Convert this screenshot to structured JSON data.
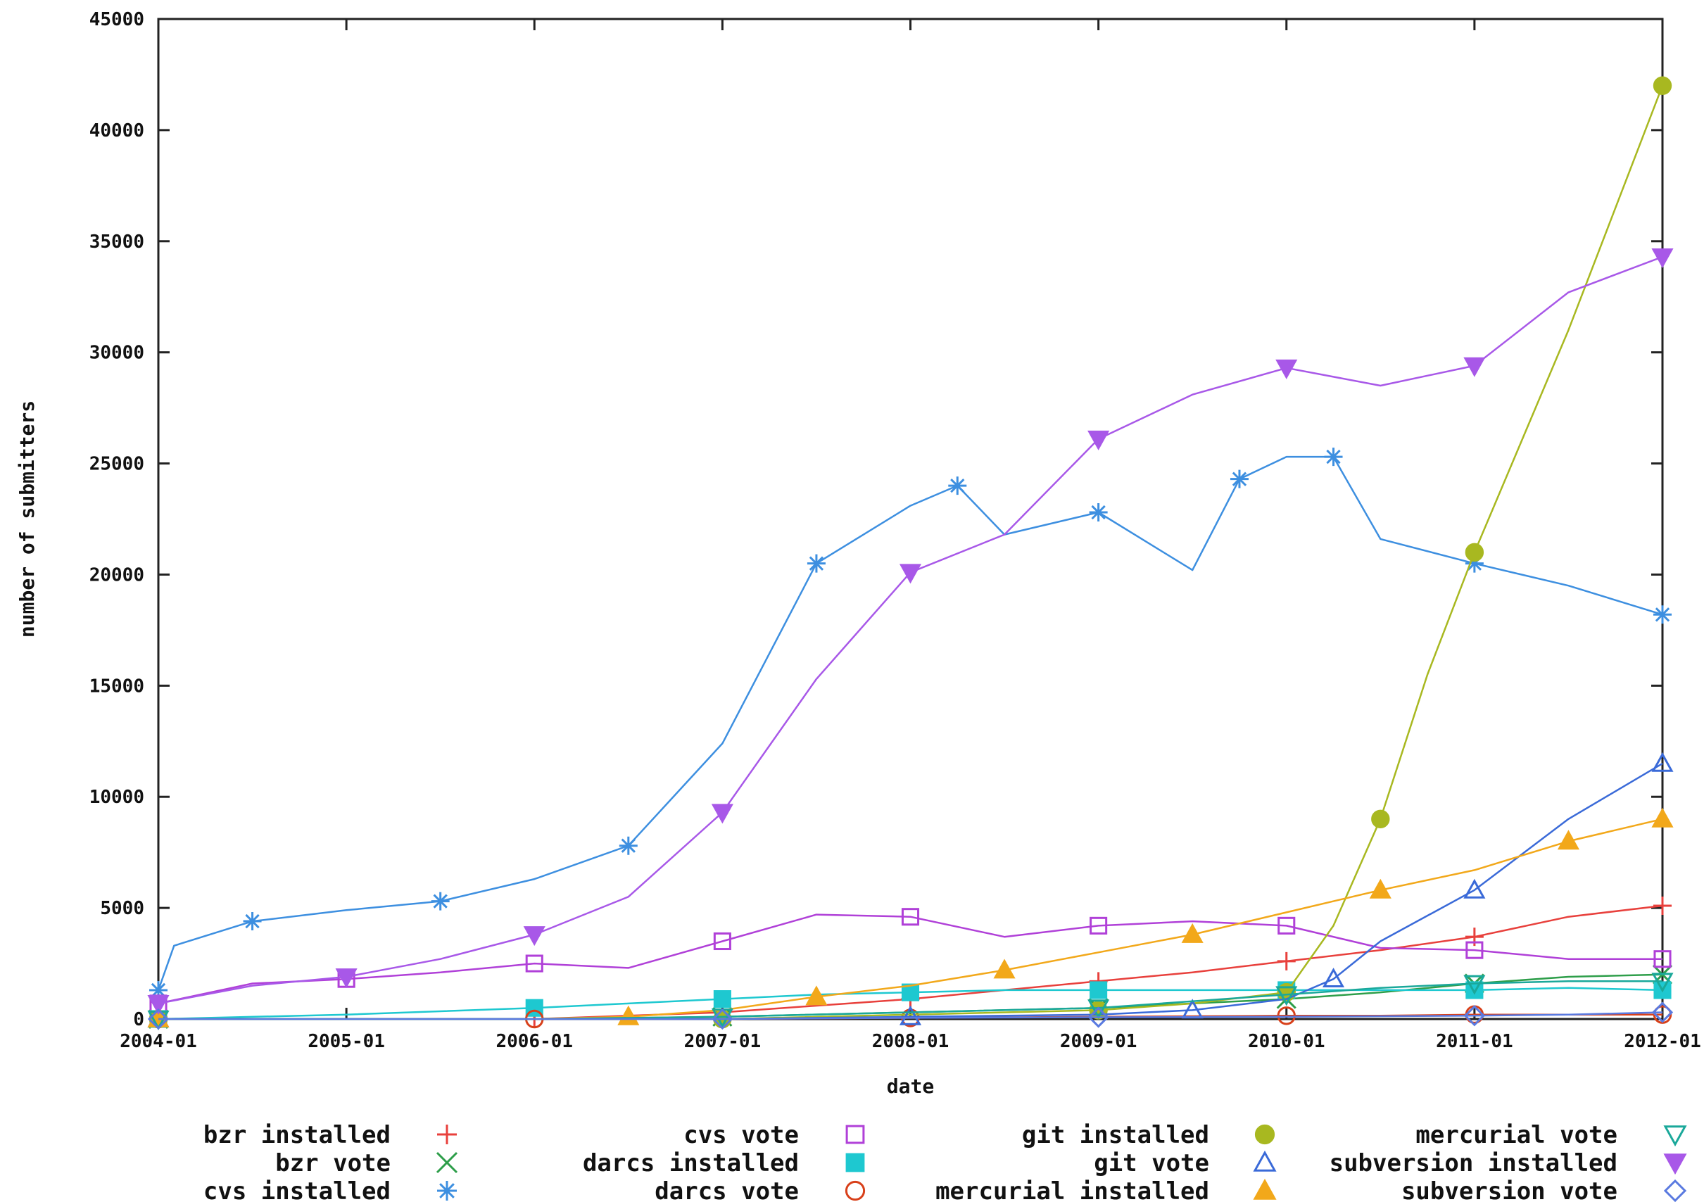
{
  "chart_data": {
    "type": "line",
    "xlabel": "date",
    "ylabel": "number of submitters",
    "x_tick_labels": [
      "2004-01",
      "2005-01",
      "2006-01",
      "2007-01",
      "2008-01",
      "2009-01",
      "2010-01",
      "2011-01",
      "2012-01"
    ],
    "y_tick_labels": [
      "0",
      "5000",
      "10000",
      "15000",
      "20000",
      "25000",
      "30000",
      "35000",
      "40000",
      "45000"
    ],
    "xlim": [
      "2004-01",
      "2012-01"
    ],
    "ylim": [
      0,
      45000
    ],
    "legend_position": "bottom",
    "series": [
      {
        "name": "bzr installed",
        "color": "#e8403c",
        "marker": "plus",
        "x": [
          "2004-01",
          "2005-01",
          "2006-01",
          "2007-01",
          "2008-01",
          "2008-07",
          "2009-01",
          "2009-07",
          "2010-01",
          "2010-07",
          "2011-01",
          "2011-07",
          "2012-01"
        ],
        "y": [
          0,
          0,
          0,
          300,
          900,
          1300,
          1700,
          2100,
          2600,
          3100,
          3700,
          4600,
          5100
        ]
      },
      {
        "name": "bzr vote",
        "color": "#2e9e4a",
        "marker": "x",
        "x": [
          "2004-01",
          "2006-01",
          "2007-01",
          "2008-01",
          "2009-01",
          "2009-07",
          "2010-01",
          "2010-07",
          "2011-01",
          "2011-07",
          "2012-01"
        ],
        "y": [
          0,
          0,
          100,
          300,
          500,
          700,
          900,
          1200,
          1600,
          1900,
          2000
        ]
      },
      {
        "name": "cvs installed",
        "color": "#3d8fe0",
        "marker": "star",
        "x": [
          "2004-01",
          "2004-02",
          "2004-07",
          "2005-01",
          "2005-07",
          "2006-01",
          "2006-07",
          "2007-01",
          "2007-07",
          "2008-01",
          "2008-04",
          "2008-07",
          "2009-01",
          "2009-07",
          "2009-10",
          "2010-01",
          "2010-04",
          "2010-07",
          "2011-01",
          "2011-07",
          "2012-01"
        ],
        "y": [
          1300,
          3300,
          4400,
          4900,
          5300,
          6300,
          7800,
          12400,
          20500,
          23100,
          24000,
          21800,
          22800,
          20200,
          24300,
          25300,
          25300,
          21600,
          20500,
          19500,
          18200
        ]
      },
      {
        "name": "cvs vote",
        "color": "#b040d8",
        "marker": "square-open",
        "x": [
          "2004-01",
          "2004-07",
          "2005-01",
          "2005-07",
          "2006-01",
          "2006-07",
          "2007-01",
          "2007-07",
          "2008-01",
          "2008-07",
          "2009-01",
          "2009-07",
          "2010-01",
          "2010-07",
          "2011-01",
          "2011-07",
          "2012-01"
        ],
        "y": [
          700,
          1600,
          1800,
          2100,
          2500,
          2300,
          3500,
          4700,
          4600,
          3700,
          4200,
          4400,
          4200,
          3200,
          3100,
          2700,
          2700
        ]
      },
      {
        "name": "darcs installed",
        "color": "#1ec8d0",
        "marker": "square-filled",
        "x": [
          "2004-01",
          "2005-01",
          "2006-01",
          "2006-07",
          "2007-01",
          "2007-07",
          "2008-01",
          "2008-07",
          "2009-01",
          "2009-07",
          "2010-01",
          "2010-07",
          "2011-01",
          "2011-07",
          "2012-01"
        ],
        "y": [
          0,
          200,
          500,
          700,
          900,
          1100,
          1200,
          1300,
          1300,
          1300,
          1300,
          1300,
          1300,
          1400,
          1300
        ]
      },
      {
        "name": "darcs vote",
        "color": "#d8401a",
        "marker": "circle-open",
        "x": [
          "2004-01",
          "2005-01",
          "2006-01",
          "2007-01",
          "2008-01",
          "2009-01",
          "2010-01",
          "2010-07",
          "2011-01",
          "2011-07",
          "2012-01"
        ],
        "y": [
          0,
          0,
          0,
          0,
          50,
          100,
          150,
          150,
          200,
          200,
          200
        ]
      },
      {
        "name": "git installed",
        "color": "#a8b820",
        "marker": "circle-filled",
        "x": [
          "2004-01",
          "2006-01",
          "2007-01",
          "2008-01",
          "2009-01",
          "2009-07",
          "2010-01",
          "2010-04",
          "2010-07",
          "2010-10",
          "2011-01",
          "2011-07",
          "2012-01"
        ],
        "y": [
          0,
          0,
          0,
          200,
          400,
          700,
          1200,
          4200,
          9000,
          15500,
          21000,
          31000,
          42000
        ]
      },
      {
        "name": "git vote",
        "color": "#3a6ad8",
        "marker": "triangle-open",
        "x": [
          "2004-01",
          "2007-01",
          "2008-01",
          "2009-01",
          "2009-07",
          "2010-01",
          "2010-04",
          "2010-07",
          "2011-01",
          "2011-07",
          "2012-01"
        ],
        "y": [
          0,
          0,
          100,
          200,
          400,
          900,
          1800,
          3500,
          5800,
          9000,
          11500
        ]
      },
      {
        "name": "mercurial installed",
        "color": "#f2a81a",
        "marker": "triangle-filled",
        "x": [
          "2004-01",
          "2006-01",
          "2006-07",
          "2007-01",
          "2007-07",
          "2008-01",
          "2008-07",
          "2009-01",
          "2009-07",
          "2010-01",
          "2010-07",
          "2011-01",
          "2011-07",
          "2012-01"
        ],
        "y": [
          0,
          0,
          100,
          400,
          1000,
          1500,
          2200,
          3000,
          3800,
          4800,
          5800,
          6700,
          8000,
          9000
        ]
      },
      {
        "name": "mercurial vote",
        "color": "#1aa89a",
        "marker": "triangle-down-open",
        "x": [
          "2004-01",
          "2006-01",
          "2007-01",
          "2008-01",
          "2009-01",
          "2009-07",
          "2010-01",
          "2010-07",
          "2011-01",
          "2011-07",
          "2012-01"
        ],
        "y": [
          0,
          0,
          100,
          300,
          500,
          800,
          1100,
          1400,
          1600,
          1700,
          1700
        ]
      },
      {
        "name": "subversion installed",
        "color": "#a858e8",
        "marker": "triangle-down-filled",
        "x": [
          "2004-01",
          "2004-07",
          "2005-01",
          "2005-07",
          "2006-01",
          "2006-07",
          "2007-01",
          "2007-07",
          "2008-01",
          "2008-07",
          "2009-01",
          "2009-07",
          "2010-01",
          "2010-07",
          "2011-01",
          "2011-07",
          "2012-01"
        ],
        "y": [
          700,
          1500,
          1900,
          2700,
          3800,
          5500,
          9300,
          15300,
          20100,
          21800,
          26100,
          28100,
          29300,
          28500,
          29400,
          32700,
          34300
        ]
      },
      {
        "name": "subversion vote",
        "color": "#5a7ae0",
        "marker": "diamond-open",
        "x": [
          "2004-01",
          "2006-01",
          "2007-01",
          "2008-01",
          "2009-01",
          "2010-01",
          "2011-01",
          "2011-07",
          "2012-01"
        ],
        "y": [
          0,
          0,
          0,
          50,
          80,
          100,
          150,
          200,
          300
        ]
      }
    ]
  }
}
